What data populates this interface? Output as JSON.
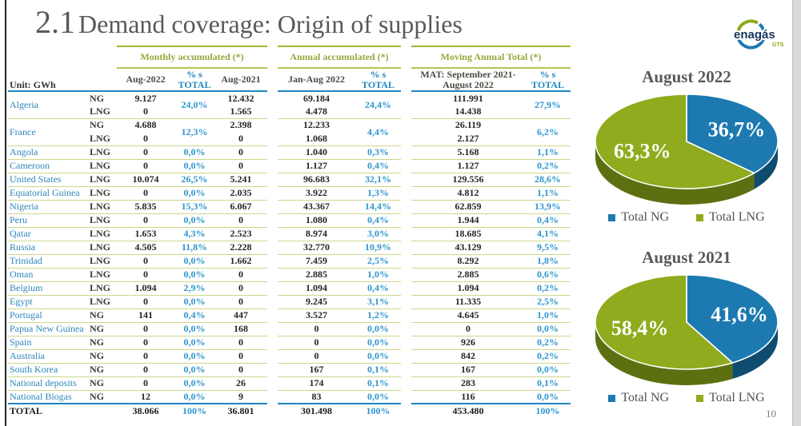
{
  "page": {
    "title_prefix": "2.1",
    "title": "Demand coverage: Origin of supplies",
    "page_number": "10"
  },
  "logo": {
    "brand": "enagás",
    "division": "GTS"
  },
  "table": {
    "unit_label": "Unit: GWh",
    "group_headers": [
      "Monthly accumulated (*)",
      "Annual accumulated (*)",
      "Moving Annual Total (*)"
    ],
    "column_headers": [
      "Aug-2022",
      "% s TOTAL",
      "Aug-2021",
      "Jan-Aug 2022",
      "% s TOTAL",
      "MAT: September 2021- August 2022",
      "% s TOTAL"
    ],
    "rows": [
      {
        "country": "Algeria",
        "entries": [
          {
            "type": "NG",
            "aug2022": "9.127",
            "aug2021": "12.432",
            "jan_aug_2022": "69.184",
            "mat": "111.991"
          },
          {
            "type": "LNG",
            "aug2022": "0",
            "aug2021": "1.565",
            "jan_aug_2022": "4.478",
            "mat": "14.438"
          }
        ],
        "pct_monthly": "24,0%",
        "pct_annual": "24,4%",
        "pct_mat": "27,9%"
      },
      {
        "country": "France",
        "entries": [
          {
            "type": "NG",
            "aug2022": "4.688",
            "aug2021": "2.398",
            "jan_aug_2022": "12.233",
            "mat": "26.119"
          },
          {
            "type": "LNG",
            "aug2022": "0",
            "aug2021": "0",
            "jan_aug_2022": "1.068",
            "mat": "2.127"
          }
        ],
        "pct_monthly": "12,3%",
        "pct_annual": "4,4%",
        "pct_mat": "6,2%"
      },
      {
        "country": "Angola",
        "entries": [
          {
            "type": "LNG",
            "aug2022": "0",
            "aug2021": "0",
            "jan_aug_2022": "1.040",
            "mat": "5.168"
          }
        ],
        "pct_monthly": "0,0%",
        "pct_annual": "0,3%",
        "pct_mat": "1,1%"
      },
      {
        "country": "Cameroon",
        "entries": [
          {
            "type": "LNG",
            "aug2022": "0",
            "aug2021": "0",
            "jan_aug_2022": "1.127",
            "mat": "1.127"
          }
        ],
        "pct_monthly": "0,0%",
        "pct_annual": "0,4%",
        "pct_mat": "0,2%"
      },
      {
        "country": "United States",
        "entries": [
          {
            "type": "LNG",
            "aug2022": "10.074",
            "aug2021": "5.241",
            "jan_aug_2022": "96.683",
            "mat": "129.556"
          }
        ],
        "pct_monthly": "26,5%",
        "pct_annual": "32,1%",
        "pct_mat": "28,6%"
      },
      {
        "country": "Equatorial Guinea",
        "entries": [
          {
            "type": "LNG",
            "aug2022": "0",
            "aug2021": "2.035",
            "jan_aug_2022": "3.922",
            "mat": "4.812"
          }
        ],
        "pct_monthly": "0,0%",
        "pct_annual": "1,3%",
        "pct_mat": "1,1%"
      },
      {
        "country": "Nigeria",
        "entries": [
          {
            "type": "LNG",
            "aug2022": "5.835",
            "aug2021": "6.067",
            "jan_aug_2022": "43.367",
            "mat": "62.859"
          }
        ],
        "pct_monthly": "15,3%",
        "pct_annual": "14,4%",
        "pct_mat": "13,9%"
      },
      {
        "country": "Peru",
        "entries": [
          {
            "type": "LNG",
            "aug2022": "0",
            "aug2021": "0",
            "jan_aug_2022": "1.080",
            "mat": "1.944"
          }
        ],
        "pct_monthly": "0,0%",
        "pct_annual": "0,4%",
        "pct_mat": "0,4%"
      },
      {
        "country": "Qatar",
        "entries": [
          {
            "type": "LNG",
            "aug2022": "1.653",
            "aug2021": "2.523",
            "jan_aug_2022": "8.974",
            "mat": "18.685"
          }
        ],
        "pct_monthly": "4,3%",
        "pct_annual": "3,0%",
        "pct_mat": "4,1%"
      },
      {
        "country": "Russia",
        "entries": [
          {
            "type": "LNG",
            "aug2022": "4.505",
            "aug2021": "2.228",
            "jan_aug_2022": "32.770",
            "mat": "43.129"
          }
        ],
        "pct_monthly": "11,8%",
        "pct_annual": "10,9%",
        "pct_mat": "9,5%"
      },
      {
        "country": "Trinidad",
        "entries": [
          {
            "type": "LNG",
            "aug2022": "0",
            "aug2021": "1.662",
            "jan_aug_2022": "7.459",
            "mat": "8.292"
          }
        ],
        "pct_monthly": "0,0%",
        "pct_annual": "2,5%",
        "pct_mat": "1,8%"
      },
      {
        "country": "Oman",
        "entries": [
          {
            "type": "LNG",
            "aug2022": "0",
            "aug2021": "0",
            "jan_aug_2022": "2.885",
            "mat": "2.885"
          }
        ],
        "pct_monthly": "0,0%",
        "pct_annual": "1,0%",
        "pct_mat": "0,6%"
      },
      {
        "country": "Belgium",
        "entries": [
          {
            "type": "LNG",
            "aug2022": "1.094",
            "aug2021": "0",
            "jan_aug_2022": "1.094",
            "mat": "1.094"
          }
        ],
        "pct_monthly": "2,9%",
        "pct_annual": "0,4%",
        "pct_mat": "0,2%"
      },
      {
        "country": "Egypt",
        "entries": [
          {
            "type": "LNG",
            "aug2022": "0",
            "aug2021": "0",
            "jan_aug_2022": "9.245",
            "mat": "11.335"
          }
        ],
        "pct_monthly": "0,0%",
        "pct_annual": "3,1%",
        "pct_mat": "2,5%"
      },
      {
        "country": "Portugal",
        "entries": [
          {
            "type": "NG",
            "aug2022": "141",
            "aug2021": "447",
            "jan_aug_2022": "3.527",
            "mat": "4.645"
          }
        ],
        "pct_monthly": "0,4%",
        "pct_annual": "1,2%",
        "pct_mat": "1,0%"
      },
      {
        "country": "Papua New Guinea",
        "entries": [
          {
            "type": "NG",
            "aug2022": "0",
            "aug2021": "168",
            "jan_aug_2022": "0",
            "mat": "0"
          }
        ],
        "pct_monthly": "0,0%",
        "pct_annual": "0,0%",
        "pct_mat": "0,0%"
      },
      {
        "country": "Spain",
        "entries": [
          {
            "type": "NG",
            "aug2022": "0",
            "aug2021": "0",
            "jan_aug_2022": "0",
            "mat": "926"
          }
        ],
        "pct_monthly": "0,0%",
        "pct_annual": "0,0%",
        "pct_mat": "0,2%"
      },
      {
        "country": "Australia",
        "entries": [
          {
            "type": "NG",
            "aug2022": "0",
            "aug2021": "0",
            "jan_aug_2022": "0",
            "mat": "842"
          }
        ],
        "pct_monthly": "0,0%",
        "pct_annual": "0,0%",
        "pct_mat": "0,2%"
      },
      {
        "country": "South Korea",
        "entries": [
          {
            "type": "NG",
            "aug2022": "0",
            "aug2021": "0",
            "jan_aug_2022": "167",
            "mat": "167"
          }
        ],
        "pct_monthly": "0,0%",
        "pct_annual": "0,1%",
        "pct_mat": "0,0%"
      },
      {
        "country": "National deposits",
        "entries": [
          {
            "type": "NG",
            "aug2022": "0",
            "aug2021": "26",
            "jan_aug_2022": "174",
            "mat": "283"
          }
        ],
        "pct_monthly": "0,0%",
        "pct_annual": "0,1%",
        "pct_mat": "0,1%"
      },
      {
        "country": "National Biogas",
        "entries": [
          {
            "type": "NG",
            "aug2022": "12",
            "aug2021": "9",
            "jan_aug_2022": "83",
            "mat": "116"
          }
        ],
        "pct_monthly": "0,0%",
        "pct_annual": "0,0%",
        "pct_mat": "0,0%"
      }
    ],
    "total_row": {
      "label": "TOTAL",
      "aug2022": "38.066",
      "pct_monthly": "100%",
      "aug2021": "36.801",
      "jan_aug_2022": "301.498",
      "pct_annual": "100%",
      "mat": "453.480",
      "pct_mat": "100%"
    }
  },
  "chart_data": [
    {
      "type": "pie",
      "title": "August 2022",
      "labels": [
        "Total NG",
        "Total LNG"
      ],
      "values": [
        36.7,
        63.3
      ],
      "value_labels": [
        "36,7%",
        "63,3%"
      ],
      "colors": [
        "#1d7ab0",
        "#90ab1d"
      ],
      "side_colors": [
        "#0f4c70",
        "#5d7011"
      ],
      "legend_position": "bottom"
    },
    {
      "type": "pie",
      "title": "August 2021",
      "labels": [
        "Total NG",
        "Total LNG"
      ],
      "values": [
        41.6,
        58.4
      ],
      "value_labels": [
        "41,6%",
        "58,4%"
      ],
      "colors": [
        "#1d7ab0",
        "#90ab1d"
      ],
      "side_colors": [
        "#0f4c70",
        "#5d7011"
      ],
      "legend_position": "bottom"
    }
  ]
}
